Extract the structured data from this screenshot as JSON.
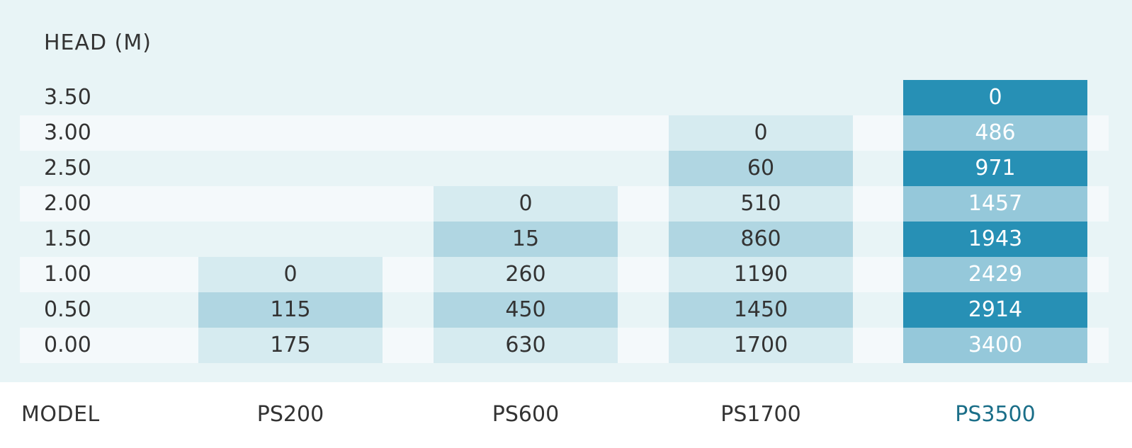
{
  "header": {
    "label": "HEAD (M)"
  },
  "table": {
    "rows": [
      [
        "3.50",
        null,
        null,
        null,
        0
      ],
      [
        "3.00",
        null,
        null,
        0,
        486
      ],
      [
        "2.50",
        null,
        null,
        60,
        971
      ],
      [
        "2.00",
        null,
        0,
        510,
        1457
      ],
      [
        "1.50",
        null,
        15,
        860,
        1943
      ],
      [
        "1.00",
        0,
        260,
        1190,
        2429
      ],
      [
        "0.50",
        115,
        450,
        1450,
        2914
      ],
      [
        "0.00",
        175,
        630,
        1700,
        3400
      ]
    ]
  },
  "footer": {
    "label": "MODEL",
    "models": [
      "PS200",
      "PS600",
      "PS1700",
      "PS3500"
    ]
  }
}
